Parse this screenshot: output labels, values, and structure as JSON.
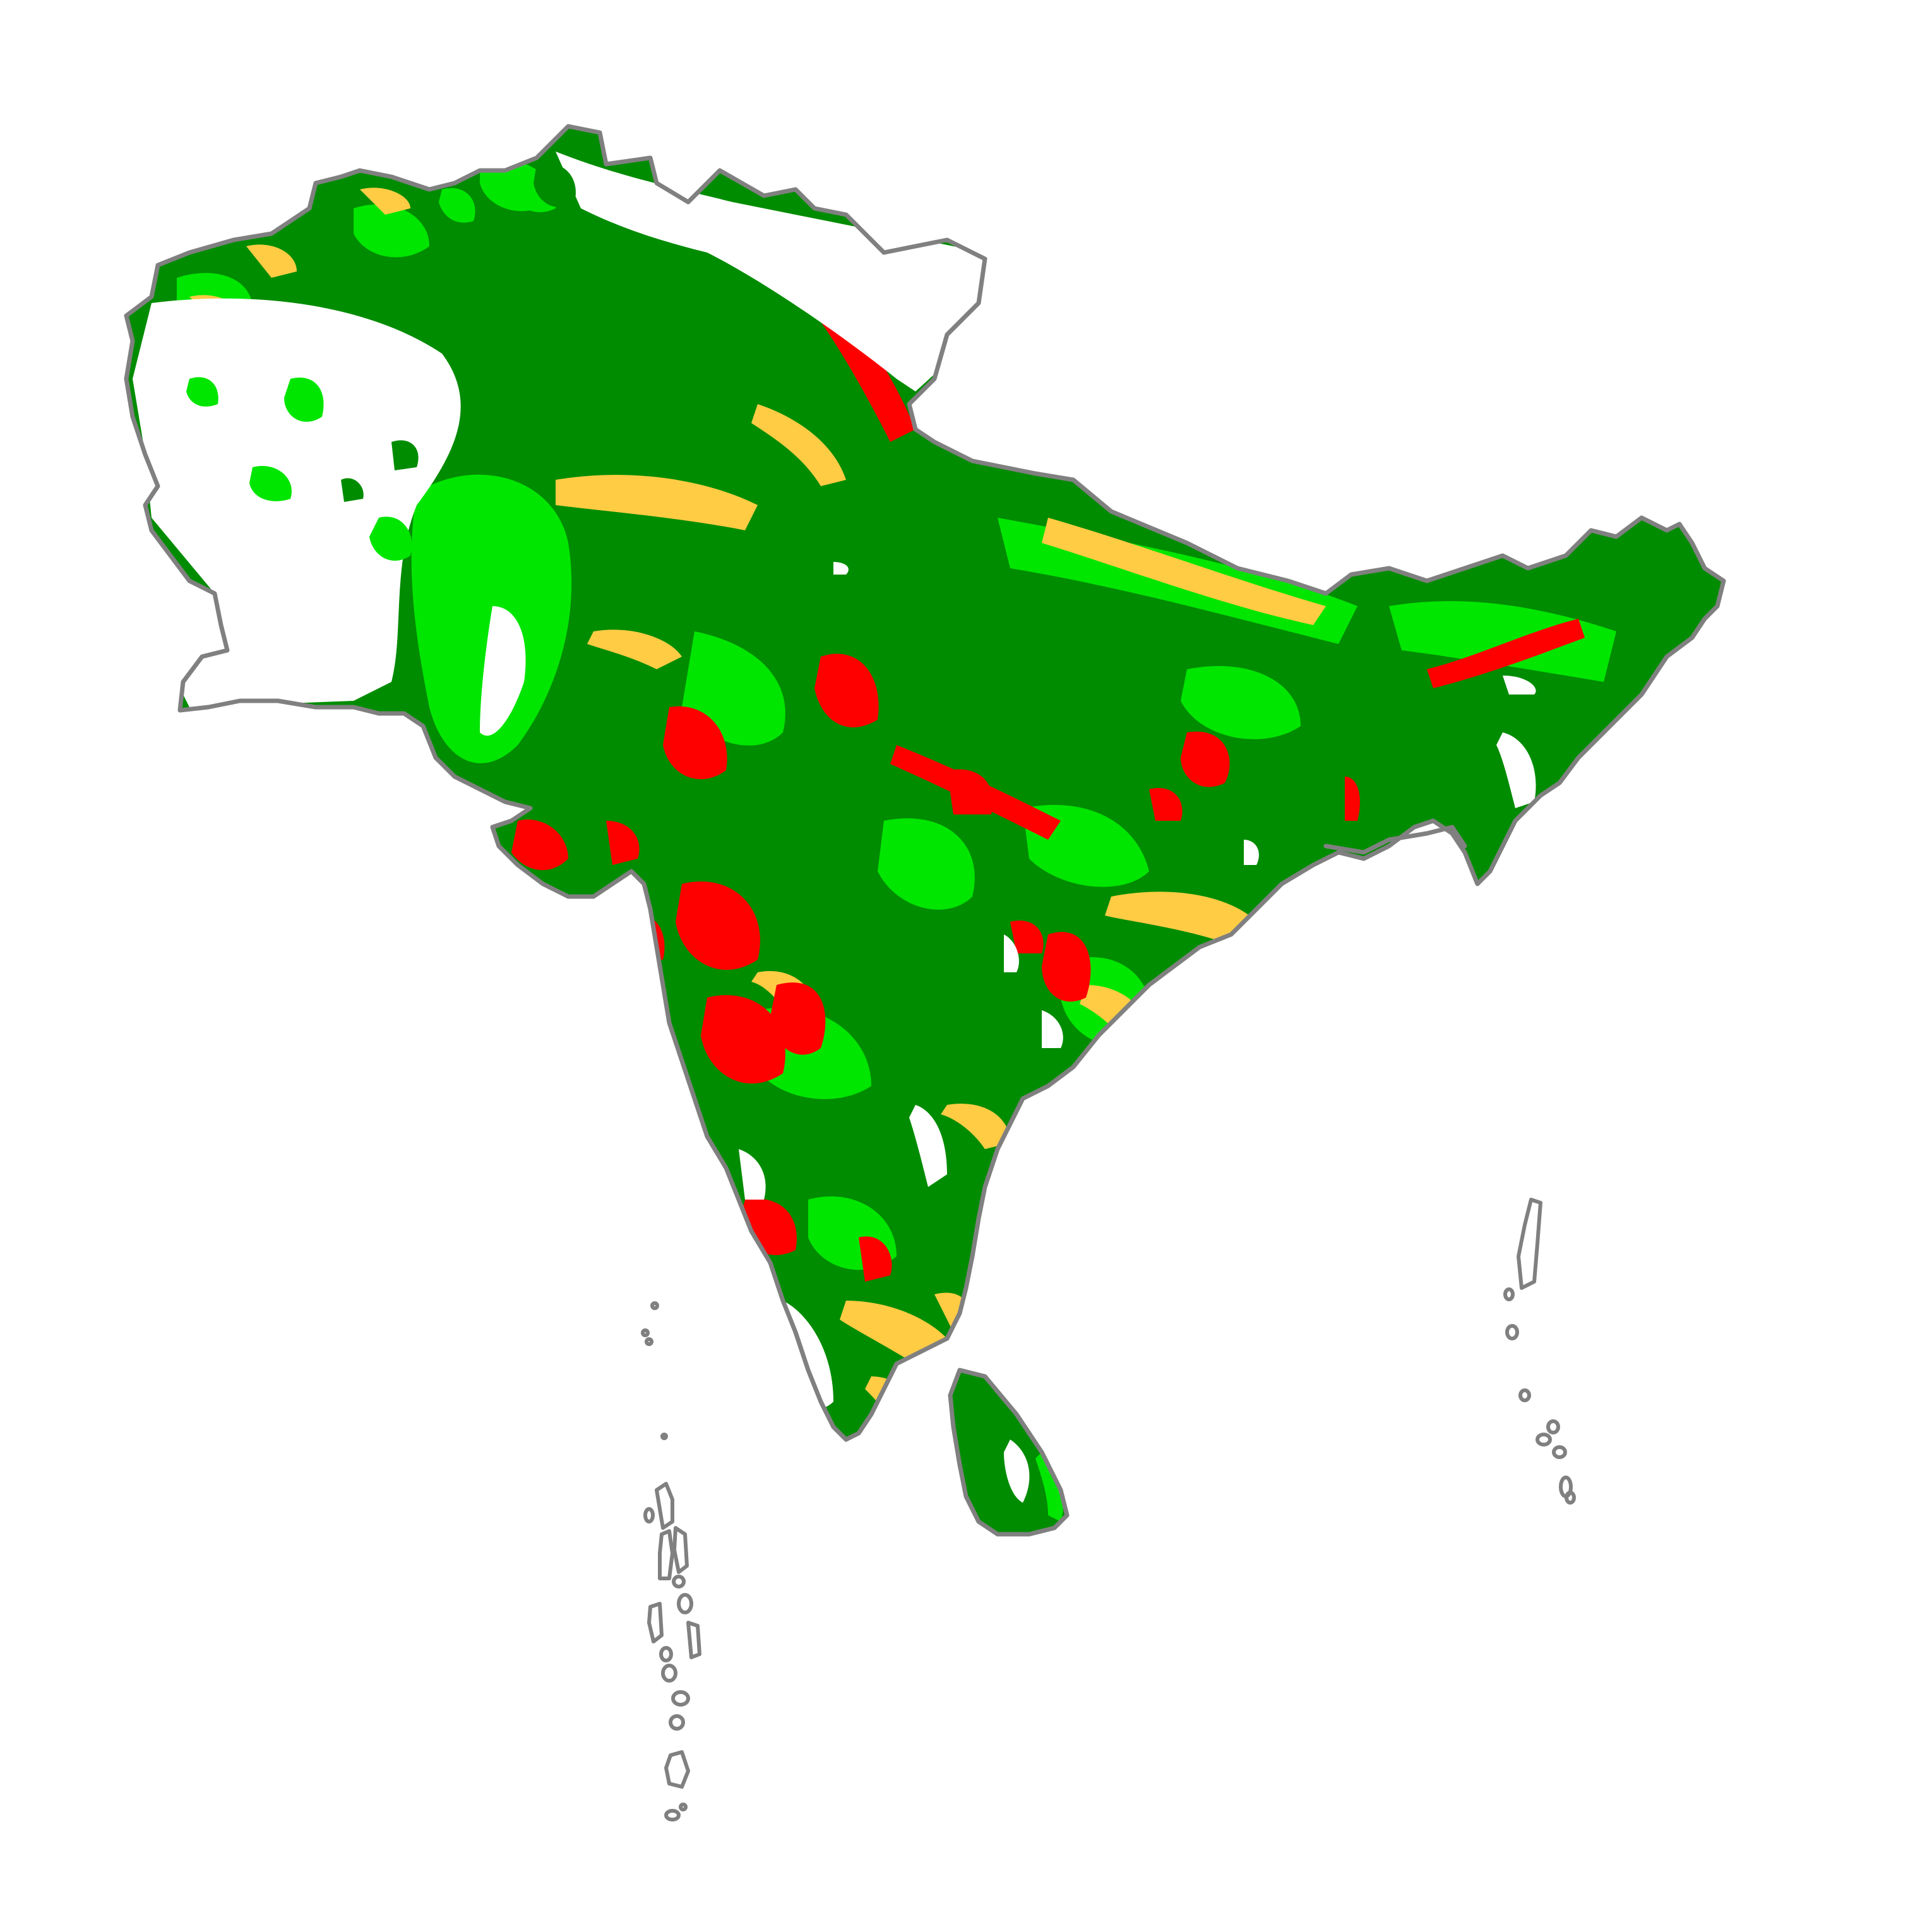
{
  "map": {
    "region": "South Asia",
    "kind": "categorical raster land-cover map",
    "legend_shown": false,
    "title_shown": false
  },
  "colors": {
    "background": "#ffffff",
    "outline": "#808080",
    "dark_green": "#008c00",
    "bright_green": "#00e600",
    "light_green": "#66ee44",
    "yellow": "#ffcc44",
    "red": "#ff0000",
    "no_data": "#ffffff"
  },
  "categories": [
    {
      "key": "dark_green",
      "color": "#008c00"
    },
    {
      "key": "bright_green",
      "color": "#00e600"
    },
    {
      "key": "yellow",
      "color": "#ffcc44"
    },
    {
      "key": "red",
      "color": "#ff0000"
    },
    {
      "key": "no_data",
      "color": "#ffffff"
    }
  ]
}
